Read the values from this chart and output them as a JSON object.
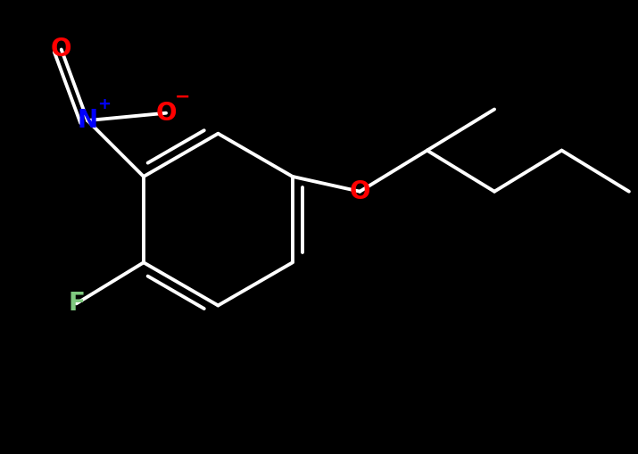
{
  "bg_color": "#000000",
  "bond_color": "#ffffff",
  "bond_width": 2.8,
  "atom_colors": {
    "O": "#ff0000",
    "N": "#0000ff",
    "F": "#7fc97f",
    "C": "#ffffff"
  },
  "font_size": 20
}
